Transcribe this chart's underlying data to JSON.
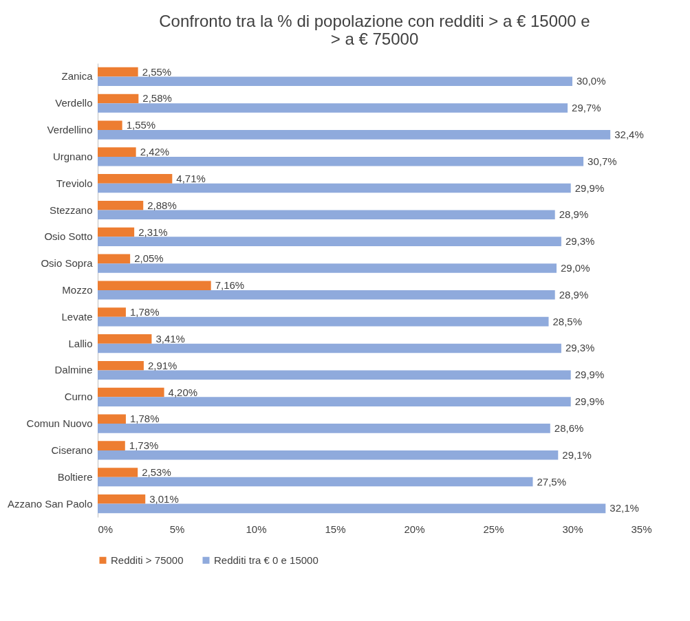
{
  "chart_data": {
    "type": "bar",
    "orientation": "horizontal",
    "title": "Confronto tra la % di popolazione con redditi > a € 15000 e > a € 75000",
    "categories": [
      "Zanica",
      "Verdello",
      "Verdellino",
      "Urgnano",
      "Treviolo",
      "Stezzano",
      "Osio Sotto",
      "Osio Sopra",
      "Mozzo",
      "Levate",
      "Lallio",
      "Dalmine",
      "Curno",
      "Comun Nuovo",
      "Ciserano",
      "Boltiere",
      "Azzano San Paolo"
    ],
    "series": [
      {
        "name": "Redditi > 75000",
        "color": "#ed7d31",
        "values": [
          2.55,
          2.58,
          1.55,
          2.42,
          4.71,
          2.88,
          2.31,
          2.05,
          7.16,
          1.78,
          3.41,
          2.91,
          4.2,
          1.78,
          1.73,
          2.53,
          3.01
        ],
        "value_labels": [
          "2,55%",
          "2,58%",
          "1,55%",
          "2,42%",
          "4,71%",
          "2,88%",
          "2,31%",
          "2,05%",
          "7,16%",
          "1,78%",
          "3,41%",
          "2,91%",
          "4,20%",
          "1,78%",
          "1,73%",
          "2,53%",
          "3,01%"
        ]
      },
      {
        "name": "Redditi tra € 0 e 15000",
        "color": "#8faadc",
        "values": [
          30.0,
          29.7,
          32.4,
          30.7,
          29.9,
          28.9,
          29.3,
          29.0,
          28.9,
          28.5,
          29.3,
          29.9,
          29.9,
          28.6,
          29.1,
          27.5,
          32.1
        ],
        "value_labels": [
          "30,0%",
          "29,7%",
          "32,4%",
          "30,7%",
          "29,9%",
          "28,9%",
          "29,3%",
          "29,0%",
          "28,9%",
          "28,5%",
          "29,3%",
          "29,9%",
          "29,9%",
          "28,6%",
          "29,1%",
          "27,5%",
          "32,1%"
        ]
      }
    ],
    "xlim": [
      0,
      35
    ],
    "xticks": [
      {
        "value": 0,
        "label": "0%"
      },
      {
        "value": 5,
        "label": "5%"
      },
      {
        "value": 10,
        "label": "10%"
      },
      {
        "value": 15,
        "label": "15%"
      },
      {
        "value": 20,
        "label": "20%"
      },
      {
        "value": 25,
        "label": "25%"
      },
      {
        "value": 30,
        "label": "30%"
      },
      {
        "value": 35,
        "label": "35%"
      }
    ],
    "legend": "bottom",
    "grid": false
  }
}
